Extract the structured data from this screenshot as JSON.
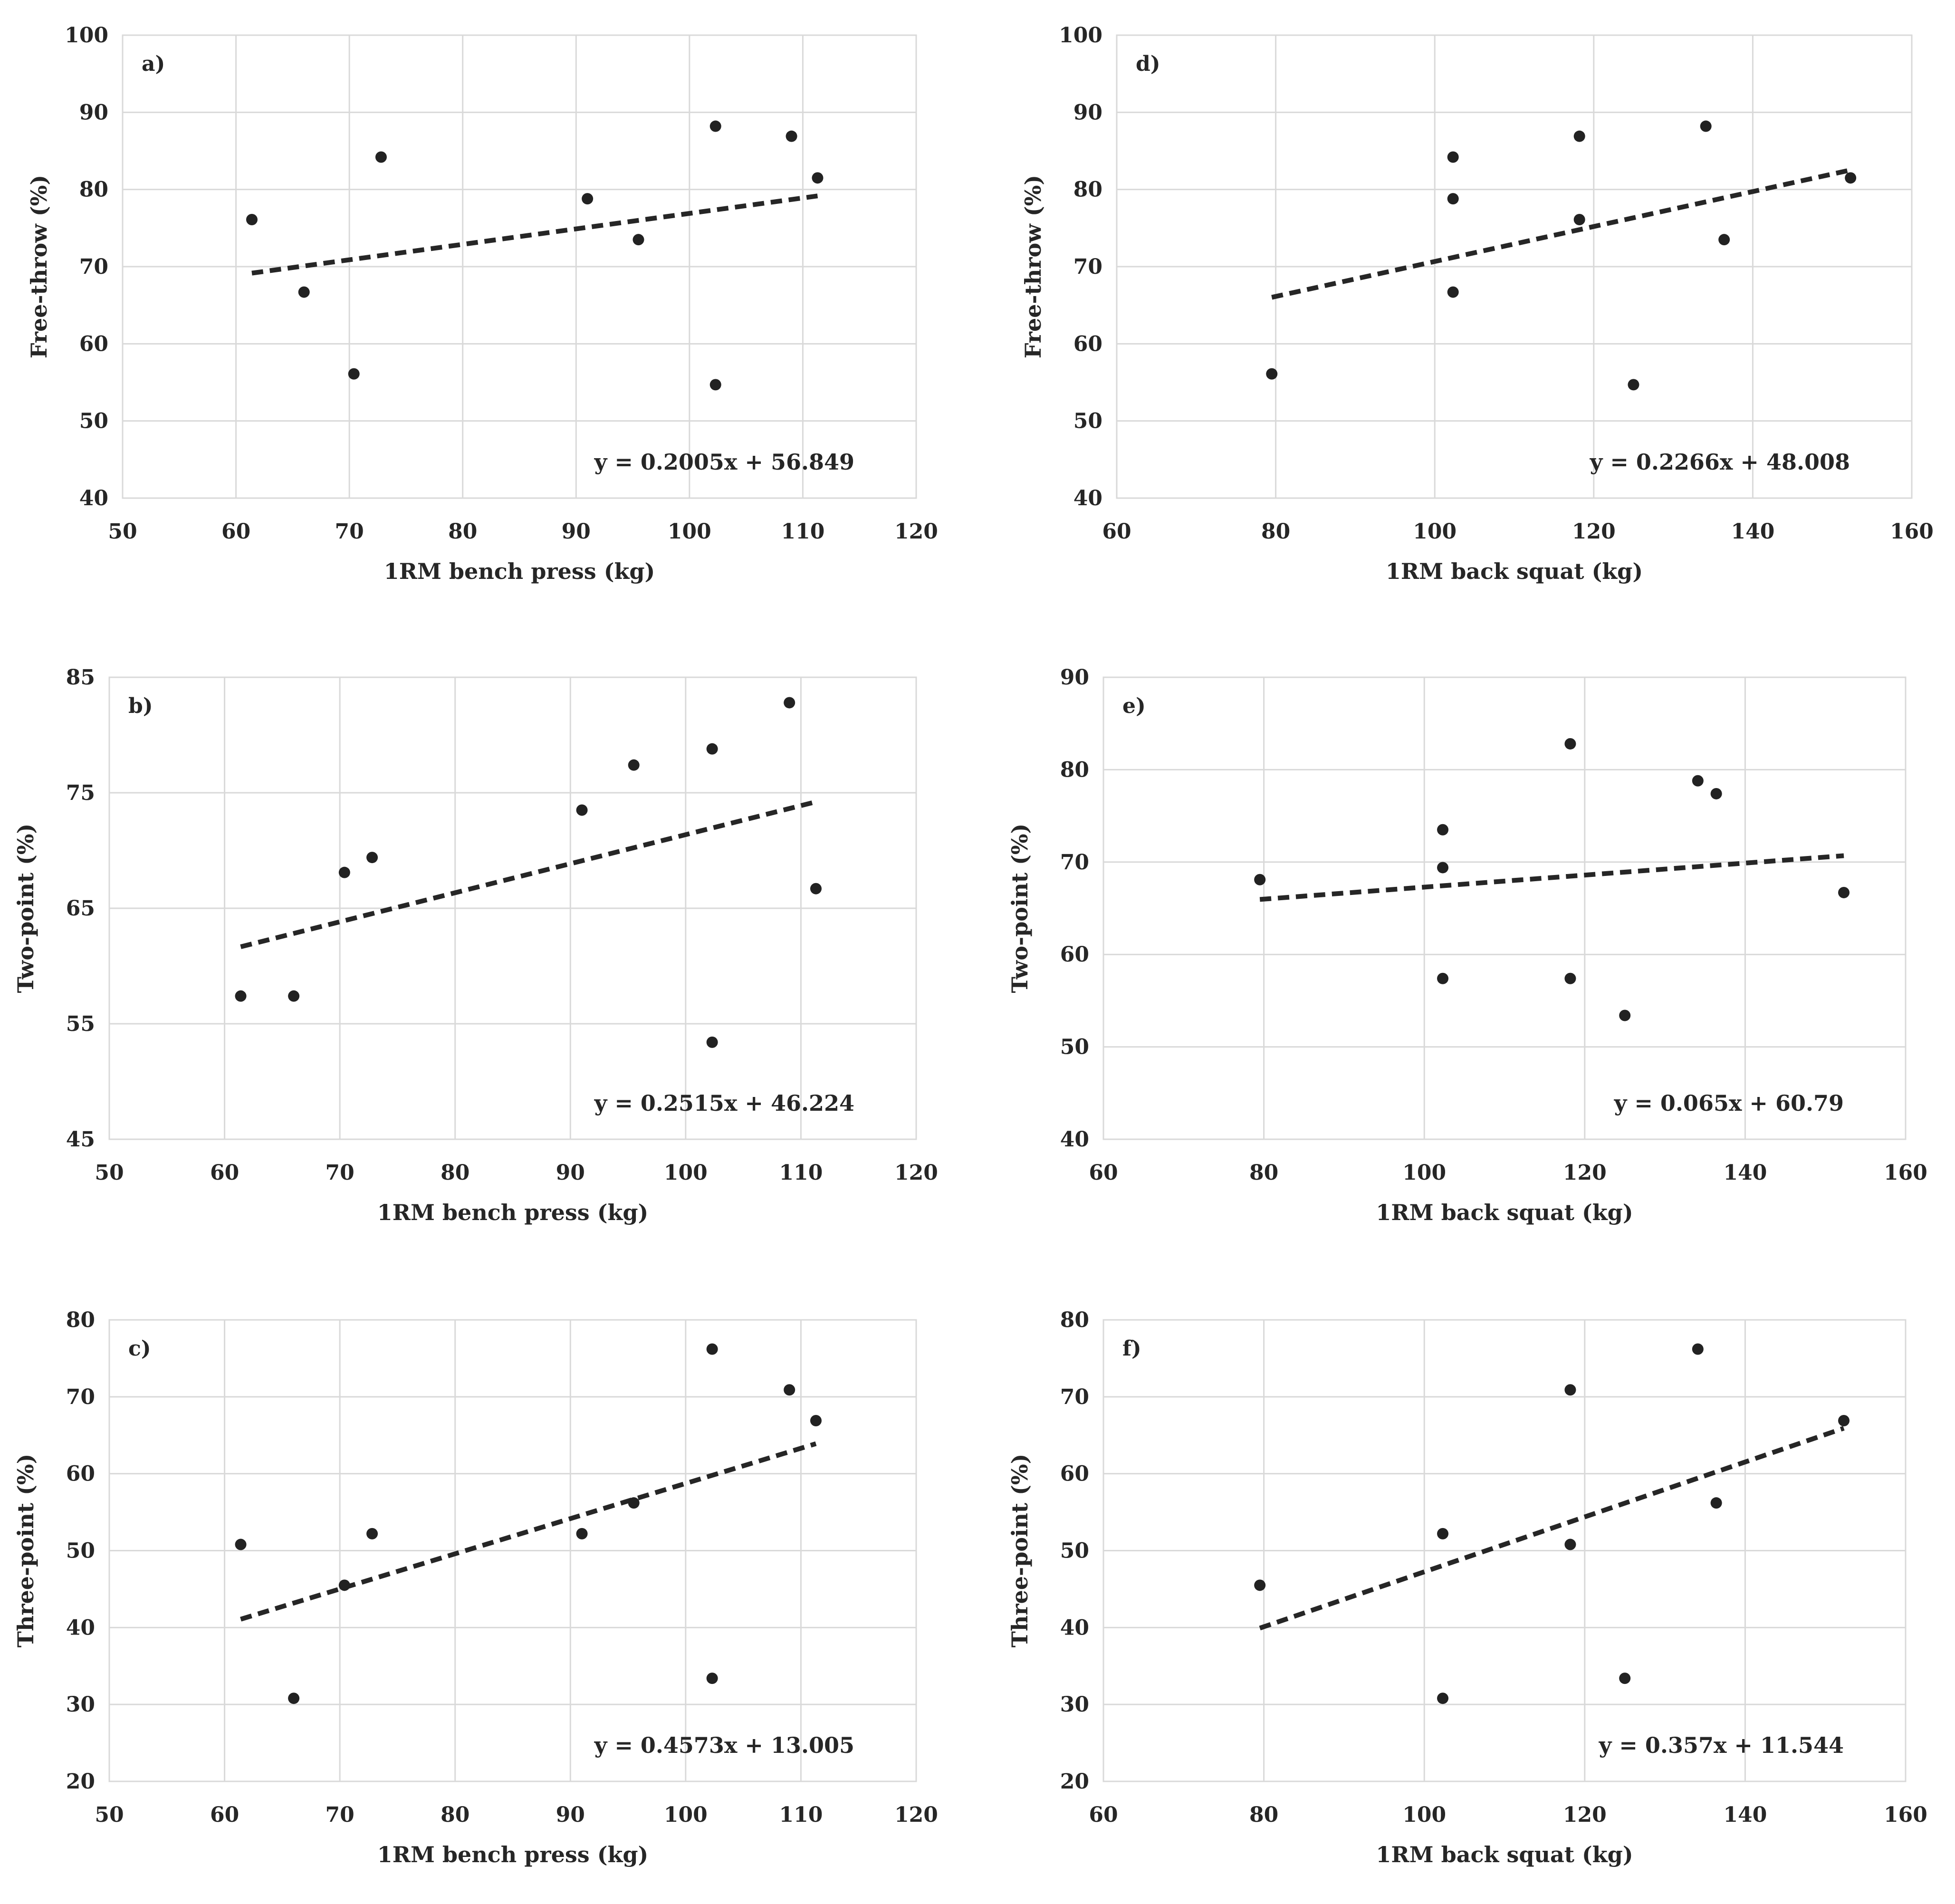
{
  "chart_data": [
    {
      "id": "a",
      "type": "scatter",
      "panel_label": "a)",
      "xlabel": "1RM bench press (kg)",
      "ylabel": "Free-throw (%)",
      "xlim": [
        50,
        120
      ],
      "ylim": [
        40,
        100
      ],
      "xticks": [
        50,
        60,
        70,
        80,
        90,
        100,
        110,
        120
      ],
      "yticks": [
        40,
        50,
        60,
        70,
        80,
        90,
        100
      ],
      "points": [
        [
          61.4,
          76.1
        ],
        [
          66,
          66.7
        ],
        [
          70.4,
          56.1
        ],
        [
          72.8,
          84.2
        ],
        [
          91,
          78.8
        ],
        [
          95.5,
          73.5
        ],
        [
          102.3,
          88.2
        ],
        [
          102.3,
          54.7
        ],
        [
          109,
          86.9
        ],
        [
          111.3,
          81.5
        ]
      ],
      "trendline": {
        "slope": 0.2005,
        "intercept": 56.849,
        "x_range": [
          61.4,
          111.3
        ]
      },
      "equation": "y = 0.2005x + 56.849",
      "grid": true
    },
    {
      "id": "d",
      "type": "scatter",
      "panel_label": "d)",
      "xlabel": "1RM back squat (kg)",
      "ylabel": "Free-throw (%)",
      "xlim": [
        60,
        160
      ],
      "ylim": [
        40,
        100
      ],
      "xticks": [
        60,
        80,
        100,
        120,
        140,
        160
      ],
      "yticks": [
        40,
        50,
        60,
        70,
        80,
        90,
        100
      ],
      "points": [
        [
          79.5,
          56.1
        ],
        [
          102.3,
          84.2
        ],
        [
          102.3,
          78.8
        ],
        [
          102.3,
          66.7
        ],
        [
          118.2,
          86.9
        ],
        [
          118.2,
          76.1
        ],
        [
          125,
          54.7
        ],
        [
          134.1,
          88.2
        ],
        [
          136.4,
          73.5
        ],
        [
          152.3,
          81.5
        ]
      ],
      "trendline": {
        "slope": 0.2266,
        "intercept": 48.008,
        "x_range": [
          79.5,
          152.3
        ]
      },
      "equation": "y = 0.2266x + 48.008",
      "grid": true
    },
    {
      "id": "b",
      "type": "scatter",
      "panel_label": "b)",
      "xlabel": "1RM bench press (kg)",
      "ylabel": "Two-point (%)",
      "xlim": [
        50,
        120
      ],
      "ylim": [
        45,
        85
      ],
      "xticks": [
        50,
        60,
        70,
        80,
        90,
        100,
        110,
        120
      ],
      "yticks": [
        45,
        55,
        65,
        75,
        85
      ],
      "points": [
        [
          61.4,
          57.4
        ],
        [
          66,
          57.4
        ],
        [
          70.4,
          68.1
        ],
        [
          72.8,
          69.4
        ],
        [
          91,
          73.5
        ],
        [
          95.5,
          77.4
        ],
        [
          102.3,
          78.8
        ],
        [
          102.3,
          53.4
        ],
        [
          109,
          82.8
        ],
        [
          111.3,
          66.7
        ]
      ],
      "trendline": {
        "slope": 0.2515,
        "intercept": 46.224,
        "x_range": [
          61.4,
          111.3
        ]
      },
      "equation": "y = 0.2515x + 46.224",
      "grid": true
    },
    {
      "id": "e",
      "type": "scatter",
      "panel_label": "e)",
      "xlabel": "1RM back squat (kg)",
      "ylabel": "Two-point (%)",
      "xlim": [
        60,
        160
      ],
      "ylim": [
        40,
        90
      ],
      "xticks": [
        60,
        80,
        100,
        120,
        140,
        160
      ],
      "yticks": [
        40,
        50,
        60,
        70,
        80,
        90
      ],
      "points": [
        [
          79.5,
          68.1
        ],
        [
          102.3,
          73.5
        ],
        [
          102.3,
          69.4
        ],
        [
          102.3,
          57.4
        ],
        [
          118.2,
          82.8
        ],
        [
          118.2,
          57.4
        ],
        [
          125,
          53.4
        ],
        [
          134.1,
          78.8
        ],
        [
          136.4,
          77.4
        ],
        [
          152.3,
          66.7
        ]
      ],
      "trendline": {
        "slope": 0.065,
        "intercept": 60.79,
        "x_range": [
          79.5,
          152.3
        ]
      },
      "equation": "y = 0.065x + 60.79",
      "grid": true
    },
    {
      "id": "c",
      "type": "scatter",
      "panel_label": "c)",
      "xlabel": "1RM bench press (kg)",
      "ylabel": "Three-point (%)",
      "xlim": [
        50,
        120
      ],
      "ylim": [
        20,
        80
      ],
      "xticks": [
        50,
        60,
        70,
        80,
        90,
        100,
        110,
        120
      ],
      "yticks": [
        20,
        30,
        40,
        50,
        60,
        70,
        80
      ],
      "points": [
        [
          61.4,
          50.8
        ],
        [
          66,
          30.8
        ],
        [
          70.4,
          45.5
        ],
        [
          72.8,
          52.2
        ],
        [
          91,
          52.2
        ],
        [
          95.5,
          56.2
        ],
        [
          102.3,
          76.2
        ],
        [
          102.3,
          33.4
        ],
        [
          109,
          70.9
        ],
        [
          111.3,
          66.9
        ]
      ],
      "trendline": {
        "slope": 0.4573,
        "intercept": 13.005,
        "x_range": [
          61.4,
          111.3
        ]
      },
      "equation": "y = 0.4573x + 13.005",
      "grid": true
    },
    {
      "id": "f",
      "type": "scatter",
      "panel_label": "f)",
      "xlabel": "1RM back squat (kg)",
      "ylabel": "Three-point (%)",
      "xlim": [
        60,
        160
      ],
      "ylim": [
        20,
        80
      ],
      "xticks": [
        60,
        80,
        100,
        120,
        140,
        160
      ],
      "yticks": [
        20,
        30,
        40,
        50,
        60,
        70,
        80
      ],
      "points": [
        [
          79.5,
          45.5
        ],
        [
          102.3,
          52.2
        ],
        [
          102.3,
          30.8
        ],
        [
          118.2,
          70.9
        ],
        [
          118.2,
          50.8
        ],
        [
          125,
          33.4
        ],
        [
          134.1,
          76.2
        ],
        [
          136.4,
          56.2
        ],
        [
          152.3,
          66.9
        ]
      ],
      "trendline": {
        "slope": 0.357,
        "intercept": 11.544,
        "x_range": [
          79.5,
          152.3
        ]
      },
      "equation": "y = 0.357x + 11.544",
      "grid": true
    }
  ]
}
